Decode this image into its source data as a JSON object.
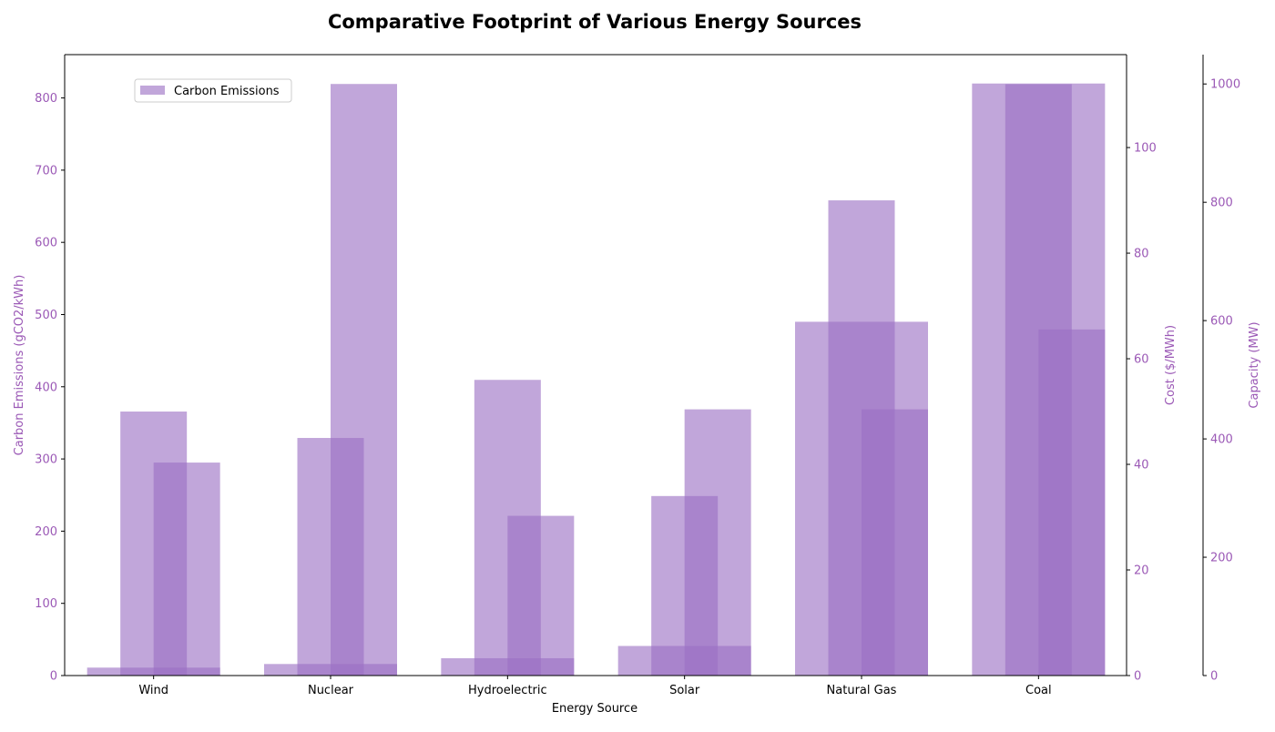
{
  "chart_data": {
    "type": "bar",
    "title": "Comparative Footprint of Various Energy Sources",
    "xlabel": "Energy Source",
    "categories": [
      "Wind",
      "Nuclear",
      "Hydroelectric",
      "Solar",
      "Natural Gas",
      "Coal"
    ],
    "series": [
      {
        "name": "Carbon Emissions",
        "axis": "left",
        "values": [
          11,
          16,
          24,
          41,
          490,
          820
        ]
      },
      {
        "axis": "right1",
        "values": [
          50,
          45,
          56,
          34,
          90,
          112
        ]
      },
      {
        "axis": "right2",
        "values": [
          360,
          1000,
          270,
          450,
          450,
          585
        ]
      }
    ],
    "axes": {
      "left": {
        "label": "Carbon Emissions (gCO2/kWh)",
        "ylim": [
          0,
          860
        ],
        "ticks": [
          0,
          100,
          200,
          300,
          400,
          500,
          600,
          700,
          800
        ]
      },
      "right1": {
        "label": "Cost ($/MWh)",
        "ylim": [
          0,
          117.6
        ],
        "ticks": [
          0,
          20,
          40,
          60,
          80,
          100
        ]
      },
      "right2": {
        "label": "Capacity (MW)",
        "ylim": [
          0,
          1049.6
        ],
        "ticks": [
          0,
          200,
          400,
          600,
          800,
          1000
        ]
      }
    },
    "legend": {
      "placement": "upper-left",
      "entries": [
        "Carbon Emissions"
      ]
    },
    "grid": false,
    "colors": {
      "bar": "#9b6fc4",
      "axis_label": "#9b59b6",
      "text": "#000000"
    }
  }
}
